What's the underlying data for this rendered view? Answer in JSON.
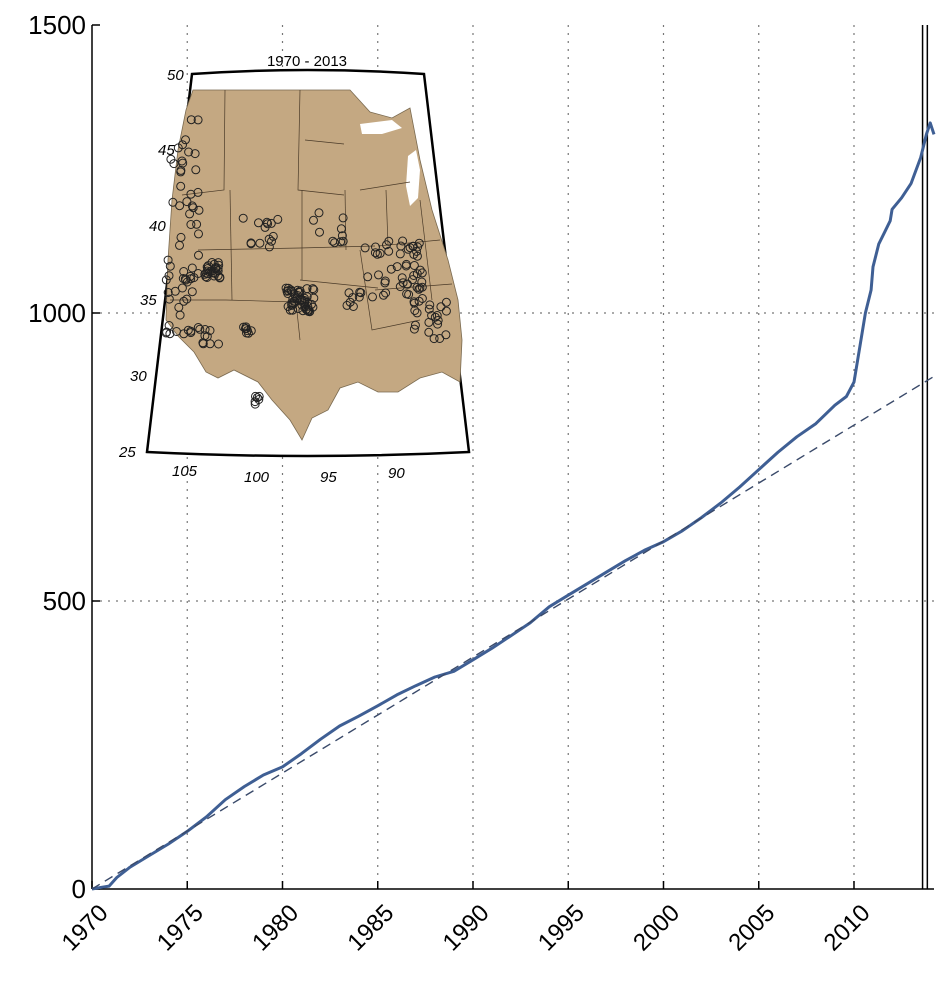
{
  "chart_data": {
    "type": "line",
    "title": "",
    "xlabel": "",
    "ylabel": "",
    "xlim": [
      1970,
      2014.2
    ],
    "ylim": [
      0,
      1500
    ],
    "grid": true,
    "x_ticks": [
      1970,
      1975,
      1980,
      1985,
      1990,
      1995,
      2000,
      2005,
      2010
    ],
    "x_tick_labels": [
      "1970",
      "1975",
      "1980",
      "1985",
      "1990",
      "1995",
      "2000",
      "2005",
      "2010"
    ],
    "y_ticks": [
      0,
      500,
      1000,
      1500
    ],
    "y_tick_labels": [
      "0",
      "500",
      "1000",
      "1500"
    ],
    "series": [
      {
        "kind": "cumulative",
        "color": "#3f5f94",
        "style": "solid",
        "x": [
          1970.0,
          1970.5,
          1970.9,
          1971.3,
          1972.0,
          1973.0,
          1974.0,
          1975.0,
          1976.0,
          1977.0,
          1978.0,
          1979.0,
          1980.0,
          1981.0,
          1982.0,
          1983.0,
          1984.0,
          1985.0,
          1986.0,
          1987.0,
          1988.0,
          1989.0,
          1990.0,
          1991.0,
          1992.0,
          1993.0,
          1994.0,
          1995.0,
          1996.0,
          1997.0,
          1998.0,
          1999.0,
          2000.0,
          2001.0,
          2002.0,
          2003.0,
          2004.0,
          2005.0,
          2006.0,
          2007.0,
          2008.0,
          2009.0,
          2009.6,
          2010.0,
          2010.3,
          2010.6,
          2010.9,
          2011.0,
          2011.3,
          2011.6,
          2011.9,
          2012.0,
          2012.5,
          2013.0,
          2013.5,
          2013.8,
          2014.0,
          2014.2
        ],
        "y": [
          0,
          3,
          5,
          20,
          38,
          58,
          78,
          100,
          125,
          155,
          178,
          198,
          212,
          235,
          260,
          283,
          300,
          318,
          337,
          353,
          368,
          378,
          398,
          418,
          440,
          462,
          490,
          510,
          530,
          550,
          570,
          588,
          603,
          622,
          645,
          670,
          698,
          728,
          758,
          785,
          808,
          840,
          855,
          880,
          940,
          1000,
          1040,
          1080,
          1120,
          1140,
          1160,
          1180,
          1200,
          1225,
          1270,
          1310,
          1330,
          1310
        ]
      },
      {
        "kind": "linear-trend",
        "color": "#3a4a6a",
        "style": "dashed",
        "x": [
          1970,
          2014.2
        ],
        "y": [
          0,
          890
        ]
      }
    ],
    "vertical_lines": [
      2013.6,
      2013.85
    ],
    "inset_map": {
      "title": "1970 - 2013",
      "lat_labels": [
        "50",
        "45",
        "40",
        "35",
        "30",
        "25"
      ],
      "lon_labels": [
        "105",
        "100",
        "95",
        "90"
      ],
      "land_color": "#c4a882"
    }
  }
}
